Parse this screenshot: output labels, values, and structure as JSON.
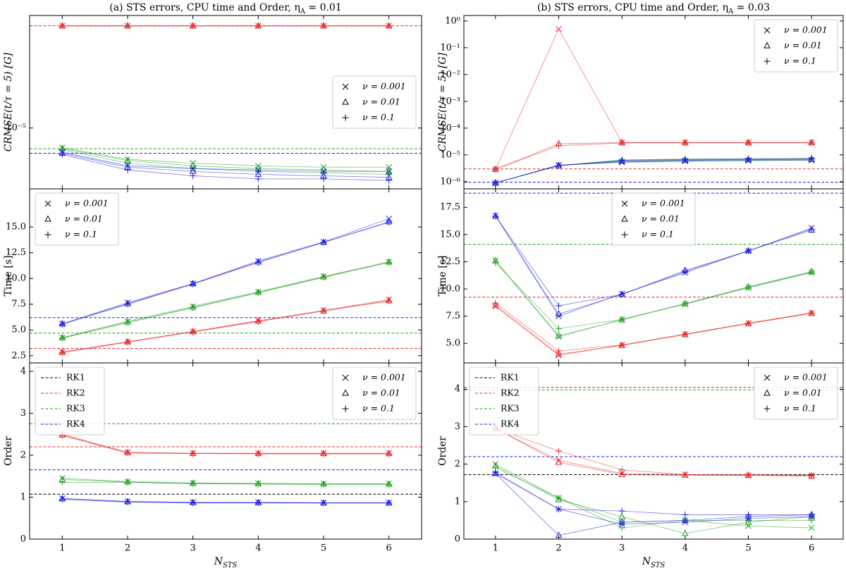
{
  "chart_data": [
    {
      "type": "line",
      "title": [
        "(a) STS errors, CPU time and Order, η",
        "A",
        " = 0.01"
      ],
      "ylabel": "CRMSE(t/τ = 5) [G]",
      "yscale": "log",
      "xlim": [
        0.5,
        6.5
      ],
      "xticks": [
        1,
        2,
        3,
        4,
        5,
        6
      ],
      "ylim": [
        5e-06,
        3.6e-05
      ],
      "yticks": [
        {
          "value": 1e-05,
          "label": "10⁻⁵"
        }
      ],
      "x": [
        1,
        2,
        3,
        4,
        5,
        6
      ],
      "legend": {
        "loc": "center right",
        "entries": [
          {
            "label": "ν = 0.001",
            "marker": "x"
          },
          {
            "label": "ν = 0.01",
            "marker": "^"
          },
          {
            "label": "ν = 0.1",
            "marker": "+"
          }
        ]
      },
      "hlines": [
        {
          "color": "#e8262a",
          "value": 3.2e-05
        },
        {
          "color": "#22a022",
          "value": 7.9e-06
        },
        {
          "color": "#1f1fe0",
          "value": 7.5e-06
        }
      ],
      "series": [
        {
          "color": "#e8262a",
          "marker": "x",
          "values": [
            3.2e-05,
            3.2e-05,
            3.2e-05,
            3.2e-05,
            3.2e-05,
            3.2e-05
          ]
        },
        {
          "color": "#e8262a",
          "marker": "^",
          "values": [
            3.2e-05,
            3.2e-05,
            3.2e-05,
            3.2e-05,
            3.2e-05,
            3.2e-05
          ]
        },
        {
          "color": "#e8262a",
          "marker": "+",
          "values": [
            3.2e-05,
            3.2e-05,
            3.2e-05,
            3.2e-05,
            3.2e-05,
            3.2e-05
          ]
        },
        {
          "color": "#22a022",
          "marker": "x",
          "values": [
            8e-06,
            7e-06,
            6.7e-06,
            6.5e-06,
            6.4e-06,
            6.4e-06
          ]
        },
        {
          "color": "#22a022",
          "marker": "^",
          "values": [
            7.9e-06,
            6.9e-06,
            6.5e-06,
            6.3e-06,
            6.2e-06,
            6.1e-06
          ]
        },
        {
          "color": "#22a022",
          "marker": "+",
          "values": [
            7.8e-06,
            6.7e-06,
            6.3e-06,
            6.1e-06,
            6e-06,
            5.9e-06
          ]
        },
        {
          "color": "#1f1fe0",
          "marker": "x",
          "values": [
            7.6e-06,
            6.5e-06,
            6.3e-06,
            6.2e-06,
            6.1e-06,
            6.1e-06
          ]
        },
        {
          "color": "#1f1fe0",
          "marker": "^",
          "values": [
            7.5e-06,
            6.4e-06,
            6.1e-06,
            5.9e-06,
            5.8e-06,
            5.7e-06
          ]
        },
        {
          "color": "#1f1fe0",
          "marker": "+",
          "values": [
            7.4e-06,
            6.2e-06,
            5.8e-06,
            5.6e-06,
            5.6e-06,
            5.5e-06
          ]
        }
      ]
    },
    {
      "type": "line",
      "title": [
        "(b) STS errors, CPU time and Order, η",
        "A",
        " = 0.03"
      ],
      "ylabel": "CRMSE(t/τ = 5) [G]",
      "yscale": "log",
      "xlim": [
        0.5,
        6.5
      ],
      "xticks": [
        1,
        2,
        3,
        4,
        5,
        6
      ],
      "ylim": [
        5.4e-07,
        1.6
      ],
      "yticks": [
        {
          "value": 1e-06,
          "label": "10⁻⁶"
        },
        {
          "value": 1e-05,
          "label": "10⁻⁵"
        },
        {
          "value": 0.0001,
          "label": "10⁻⁴"
        },
        {
          "value": 0.001,
          "label": "10⁻³"
        },
        {
          "value": 0.01,
          "label": "10⁻²"
        },
        {
          "value": 0.1,
          "label": "10⁻¹"
        },
        {
          "value": 1,
          "label": "10⁰"
        }
      ],
      "x": [
        1,
        2,
        3,
        4,
        5,
        6
      ],
      "legend": {
        "loc": "upper right",
        "entries": [
          {
            "label": "ν = 0.001",
            "marker": "x"
          },
          {
            "label": "ν = 0.01",
            "marker": "^"
          },
          {
            "label": "ν = 0.1",
            "marker": "+"
          }
        ]
      },
      "hlines": [
        {
          "color": "#e8262a",
          "value": 3e-06
        },
        {
          "color": "#1f1fe0",
          "value": 9.5e-07
        }
      ],
      "series": [
        {
          "color": "#e8262a",
          "marker": "x",
          "values": [
            2.9e-06,
            0.5,
            2.9e-05,
            2.9e-05,
            2.9e-05,
            2.9e-05
          ]
        },
        {
          "color": "#e8262a",
          "marker": "^",
          "values": [
            2.9e-06,
            2.6e-05,
            2.9e-05,
            2.9e-05,
            2.9e-05,
            2.9e-05
          ]
        },
        {
          "color": "#e8262a",
          "marker": "+",
          "values": [
            2.9e-06,
            2.2e-05,
            2.8e-05,
            2.8e-05,
            2.8e-05,
            2.8e-05
          ]
        },
        {
          "color": "#22a022",
          "marker": "x",
          "values": [
            9e-07,
            4.1e-06,
            5.5e-06,
            6e-06,
            6.3e-06,
            6.5e-06
          ]
        },
        {
          "color": "#22a022",
          "marker": "^",
          "values": [
            9e-07,
            4e-06,
            6e-06,
            6.5e-06,
            6.8e-06,
            7e-06
          ]
        },
        {
          "color": "#22a022",
          "marker": "+",
          "values": [
            9e-07,
            4e-06,
            6.5e-06,
            7e-06,
            7.2e-06,
            7.4e-06
          ]
        },
        {
          "color": "#1f1fe0",
          "marker": "x",
          "values": [
            9e-07,
            4.2e-06,
            5.3e-06,
            5.8e-06,
            6.1e-06,
            6.3e-06
          ]
        },
        {
          "color": "#1f1fe0",
          "marker": "^",
          "values": [
            9e-07,
            4e-06,
            5.8e-06,
            6.3e-06,
            6.6e-06,
            6.8e-06
          ]
        },
        {
          "color": "#1f1fe0",
          "marker": "+",
          "values": [
            9e-07,
            4e-06,
            6.3e-06,
            6.8e-06,
            7.1e-06,
            7.3e-06
          ]
        }
      ]
    },
    {
      "type": "line",
      "ylabel": "Time [s]",
      "xlim": [
        0.5,
        6.5
      ],
      "xticks": [
        1,
        2,
        3,
        4,
        5,
        6
      ],
      "ylim": [
        1.8,
        18.7
      ],
      "yticks": [
        2.5,
        {
          "value": 5,
          "label": "5.0"
        },
        7.5,
        {
          "value": 10,
          "label": "10.0"
        },
        12.5,
        {
          "value": 15,
          "label": "15.0"
        }
      ],
      "x": [
        1,
        2,
        3,
        4,
        5,
        6
      ],
      "legend": {
        "loc": "upper left",
        "entries": [
          {
            "label": "ν = 0.001",
            "marker": "x"
          },
          {
            "label": "ν = 0.01",
            "marker": "^"
          },
          {
            "label": "ν = 0.1",
            "marker": "+"
          }
        ]
      },
      "hlines": [
        {
          "color": "#1f1fe0",
          "value": 6.2
        },
        {
          "color": "#22a022",
          "value": 4.7
        },
        {
          "color": "#e8262a",
          "value": 3.2
        }
      ],
      "series": [
        {
          "color": "#1f1fe0",
          "marker": "x",
          "values": [
            5.6,
            7.65,
            9.5,
            11.7,
            13.55,
            15.8
          ]
        },
        {
          "color": "#1f1fe0",
          "marker": "^",
          "values": [
            5.6,
            7.55,
            9.5,
            11.6,
            13.5,
            15.5
          ]
        },
        {
          "color": "#1f1fe0",
          "marker": "+",
          "values": [
            5.55,
            7.5,
            9.45,
            11.55,
            13.5,
            15.45
          ]
        },
        {
          "color": "#22a022",
          "marker": "x",
          "values": [
            4.25,
            5.85,
            7.3,
            8.7,
            10.2,
            11.6
          ]
        },
        {
          "color": "#22a022",
          "marker": "^",
          "values": [
            4.25,
            5.75,
            7.2,
            8.65,
            10.15,
            11.6
          ]
        },
        {
          "color": "#22a022",
          "marker": "+",
          "values": [
            4.2,
            5.7,
            7.15,
            8.6,
            10.1,
            11.55
          ]
        },
        {
          "color": "#e8262a",
          "marker": "x",
          "values": [
            2.85,
            3.85,
            4.85,
            5.9,
            6.9,
            7.95
          ]
        },
        {
          "color": "#e8262a",
          "marker": "^",
          "values": [
            2.85,
            3.85,
            4.85,
            5.85,
            6.85,
            7.85
          ]
        },
        {
          "color": "#e8262a",
          "marker": "+",
          "values": [
            2.8,
            3.8,
            4.8,
            5.8,
            6.85,
            7.8
          ]
        }
      ]
    },
    {
      "type": "line",
      "ylabel": "Time [s]",
      "xlim": [
        0.5,
        6.5
      ],
      "xticks": [
        1,
        2,
        3,
        4,
        5,
        6
      ],
      "ylim": [
        3.2,
        19.2
      ],
      "yticks": [
        {
          "value": 5,
          "label": "5.0"
        },
        7.5,
        {
          "value": 10,
          "label": "10.0"
        },
        12.5,
        {
          "value": 15,
          "label": "15.0"
        },
        17.5
      ],
      "x": [
        1,
        2,
        3,
        4,
        5,
        6
      ],
      "legend": {
        "loc": "upper center",
        "entries": [
          {
            "label": "ν = 0.001",
            "marker": "x"
          },
          {
            "label": "ν = 0.01",
            "marker": "^"
          },
          {
            "label": "ν = 0.1",
            "marker": "+"
          }
        ]
      },
      "hlines": [
        {
          "color": "#1f1fe0",
          "value": 18.8
        },
        {
          "color": "#22a022",
          "value": 14.1
        },
        {
          "color": "#e8262a",
          "value": 9.25
        }
      ],
      "series": [
        {
          "color": "#1f1fe0",
          "marker": "x",
          "values": [
            16.75,
            7.5,
            9.55,
            11.5,
            13.5,
            15.6
          ]
        },
        {
          "color": "#1f1fe0",
          "marker": "^",
          "values": [
            16.7,
            7.7,
            9.5,
            11.7,
            13.5,
            15.4
          ]
        },
        {
          "color": "#1f1fe0",
          "marker": "+",
          "values": [
            16.7,
            8.45,
            9.5,
            11.6,
            13.5,
            15.5
          ]
        },
        {
          "color": "#22a022",
          "marker": "x",
          "values": [
            12.6,
            5.6,
            7.2,
            8.6,
            10.1,
            11.5
          ]
        },
        {
          "color": "#22a022",
          "marker": "^",
          "values": [
            12.6,
            5.7,
            7.15,
            8.65,
            10.2,
            11.6
          ]
        },
        {
          "color": "#22a022",
          "marker": "+",
          "values": [
            12.4,
            6.35,
            7.2,
            8.65,
            10.15,
            11.55
          ]
        },
        {
          "color": "#e8262a",
          "marker": "x",
          "values": [
            8.4,
            3.9,
            4.85,
            5.85,
            6.85,
            7.8
          ]
        },
        {
          "color": "#e8262a",
          "marker": "^",
          "values": [
            8.5,
            4.0,
            4.8,
            5.8,
            6.8,
            7.75
          ]
        },
        {
          "color": "#e8262a",
          "marker": "+",
          "values": [
            8.7,
            4.3,
            4.85,
            5.85,
            6.85,
            7.8
          ]
        }
      ]
    },
    {
      "type": "line",
      "ylabel": "Order",
      "xlabel": [
        "N",
        "STS"
      ],
      "xlim": [
        0.5,
        6.5
      ],
      "xticks": [
        1,
        2,
        3,
        4,
        5,
        6
      ],
      "ylim": [
        0,
        4.2
      ],
      "yticks": [
        0,
        1,
        2,
        3,
        4
      ],
      "x": [
        1,
        2,
        3,
        4,
        5,
        6
      ],
      "legend": {
        "loc": "upper right",
        "entries": [
          {
            "label": "ν = 0.001",
            "marker": "x"
          },
          {
            "label": "ν = 0.01",
            "marker": "^"
          },
          {
            "label": "ν = 0.1",
            "marker": "+"
          }
        ]
      },
      "line_legend": "upper left",
      "hlines": [
        {
          "name": "RK1",
          "color": "#000000",
          "value": 1.07
        },
        {
          "name": "RK2",
          "color": "#e8262a",
          "value": 2.2
        },
        {
          "name": "RK3",
          "color": "#22a022",
          "value": 2.75
        },
        {
          "name": "RK4",
          "color": "#1f1fe0",
          "value": 1.65
        }
      ],
      "series": [
        {
          "color": "#e8262a",
          "marker": "x",
          "values": [
            2.5,
            2.07,
            2.05,
            2.05,
            2.05,
            2.05
          ]
        },
        {
          "color": "#e8262a",
          "marker": "^",
          "values": [
            2.48,
            2.06,
            2.04,
            2.04,
            2.04,
            2.04
          ]
        },
        {
          "color": "#e8262a",
          "marker": "+",
          "values": [
            2.47,
            2.05,
            2.04,
            2.03,
            2.03,
            2.03
          ]
        },
        {
          "color": "#22a022",
          "marker": "x",
          "values": [
            1.45,
            1.37,
            1.34,
            1.33,
            1.32,
            1.32
          ]
        },
        {
          "color": "#22a022",
          "marker": "^",
          "values": [
            1.42,
            1.36,
            1.33,
            1.32,
            1.31,
            1.31
          ]
        },
        {
          "color": "#22a022",
          "marker": "+",
          "values": [
            1.35,
            1.35,
            1.32,
            1.31,
            1.3,
            1.3
          ]
        },
        {
          "color": "#1f1fe0",
          "marker": "x",
          "values": [
            0.97,
            0.9,
            0.88,
            0.88,
            0.87,
            0.87
          ]
        },
        {
          "color": "#1f1fe0",
          "marker": "^",
          "values": [
            0.96,
            0.89,
            0.87,
            0.87,
            0.86,
            0.86
          ]
        },
        {
          "color": "#1f1fe0",
          "marker": "+",
          "values": [
            0.95,
            0.88,
            0.86,
            0.86,
            0.86,
            0.86
          ]
        }
      ]
    },
    {
      "type": "line",
      "ylabel": "Order",
      "xlabel": [
        "N",
        "STS"
      ],
      "xlim": [
        0.5,
        6.5
      ],
      "xticks": [
        1,
        2,
        3,
        4,
        5,
        6
      ],
      "ylim": [
        0,
        4.7
      ],
      "yticks": [
        0,
        1,
        2,
        3,
        4
      ],
      "x": [
        1,
        2,
        3,
        4,
        5,
        6
      ],
      "legend": {
        "loc": "upper right",
        "entries": [
          {
            "label": "ν = 0.001",
            "marker": "x"
          },
          {
            "label": "ν = 0.01",
            "marker": "^"
          },
          {
            "label": "ν = 0.1",
            "marker": "+"
          }
        ]
      },
      "line_legend": "upper left",
      "hlines": [
        {
          "name": "RK1",
          "color": "#000000",
          "value": 1.72
        },
        {
          "name": "RK2",
          "color": "#e8262a",
          "value": 4.05
        },
        {
          "name": "RK3",
          "color": "#22a022",
          "value": 3.98
        },
        {
          "name": "RK4",
          "color": "#1f1fe0",
          "value": 2.2
        }
      ],
      "series": [
        {
          "color": "#e8262a",
          "marker": "x",
          "values": [
            2.95,
            2.1,
            1.75,
            1.72,
            1.7,
            1.7
          ]
        },
        {
          "color": "#e8262a",
          "marker": "^",
          "values": [
            2.95,
            2.05,
            1.72,
            1.7,
            1.7,
            1.68
          ]
        },
        {
          "color": "#e8262a",
          "marker": "+",
          "values": [
            2.95,
            2.35,
            1.85,
            1.72,
            1.72,
            1.7
          ]
        },
        {
          "color": "#22a022",
          "marker": "x",
          "values": [
            2.0,
            1.1,
            0.45,
            0.5,
            0.35,
            0.3
          ]
        },
        {
          "color": "#22a022",
          "marker": "^",
          "values": [
            1.95,
            1.05,
            0.6,
            0.15,
            0.45,
            0.6
          ]
        },
        {
          "color": "#22a022",
          "marker": "+",
          "values": [
            1.9,
            1.1,
            0.3,
            0.5,
            0.5,
            0.5
          ]
        },
        {
          "color": "#1f1fe0",
          "marker": "x",
          "values": [
            1.75,
            0.8,
            0.4,
            0.45,
            0.55,
            0.6
          ]
        },
        {
          "color": "#1f1fe0",
          "marker": "^",
          "values": [
            1.75,
            0.1,
            0.45,
            0.5,
            0.6,
            0.65
          ]
        },
        {
          "color": "#1f1fe0",
          "marker": "+",
          "values": [
            1.78,
            0.8,
            0.75,
            0.65,
            0.65,
            0.65
          ]
        }
      ]
    }
  ]
}
